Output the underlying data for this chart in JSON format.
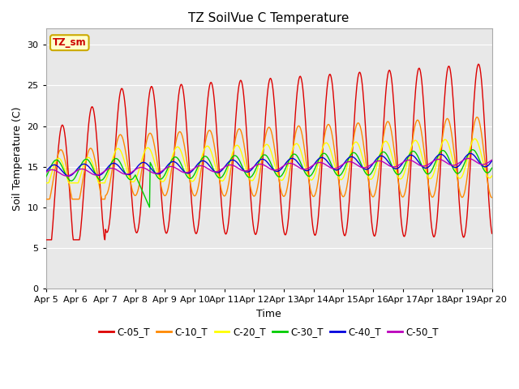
{
  "title": "TZ SoilVue C Temperature",
  "xlabel": "Time",
  "ylabel": "Soil Temperature (C)",
  "ylim": [
    0,
    32
  ],
  "yticks": [
    0,
    5,
    10,
    15,
    20,
    25,
    30
  ],
  "date_labels": [
    "Apr 5",
    "Apr 6",
    "Apr 7",
    "Apr 8",
    "Apr 9",
    "Apr 10",
    "Apr 11",
    "Apr 12",
    "Apr 13",
    "Apr 14",
    "Apr 15",
    "Apr 16",
    "Apr 17",
    "Apr 18",
    "Apr 19",
    "Apr 20"
  ],
  "annotation_text": "TZ_sm",
  "annotation_color": "#cc0000",
  "annotation_bg": "#ffffcc",
  "annotation_border": "#ccaa00",
  "legend_entries": [
    "C-05_T",
    "C-10_T",
    "C-20_T",
    "C-30_T",
    "C-40_T",
    "C-50_T"
  ],
  "line_colors": [
    "#dd0000",
    "#ff8800",
    "#ffff00",
    "#00cc00",
    "#0000dd",
    "#bb00bb"
  ],
  "fig_bg": "#ffffff",
  "plot_bg": "#e8e8e8",
  "grid_color": "#ffffff"
}
